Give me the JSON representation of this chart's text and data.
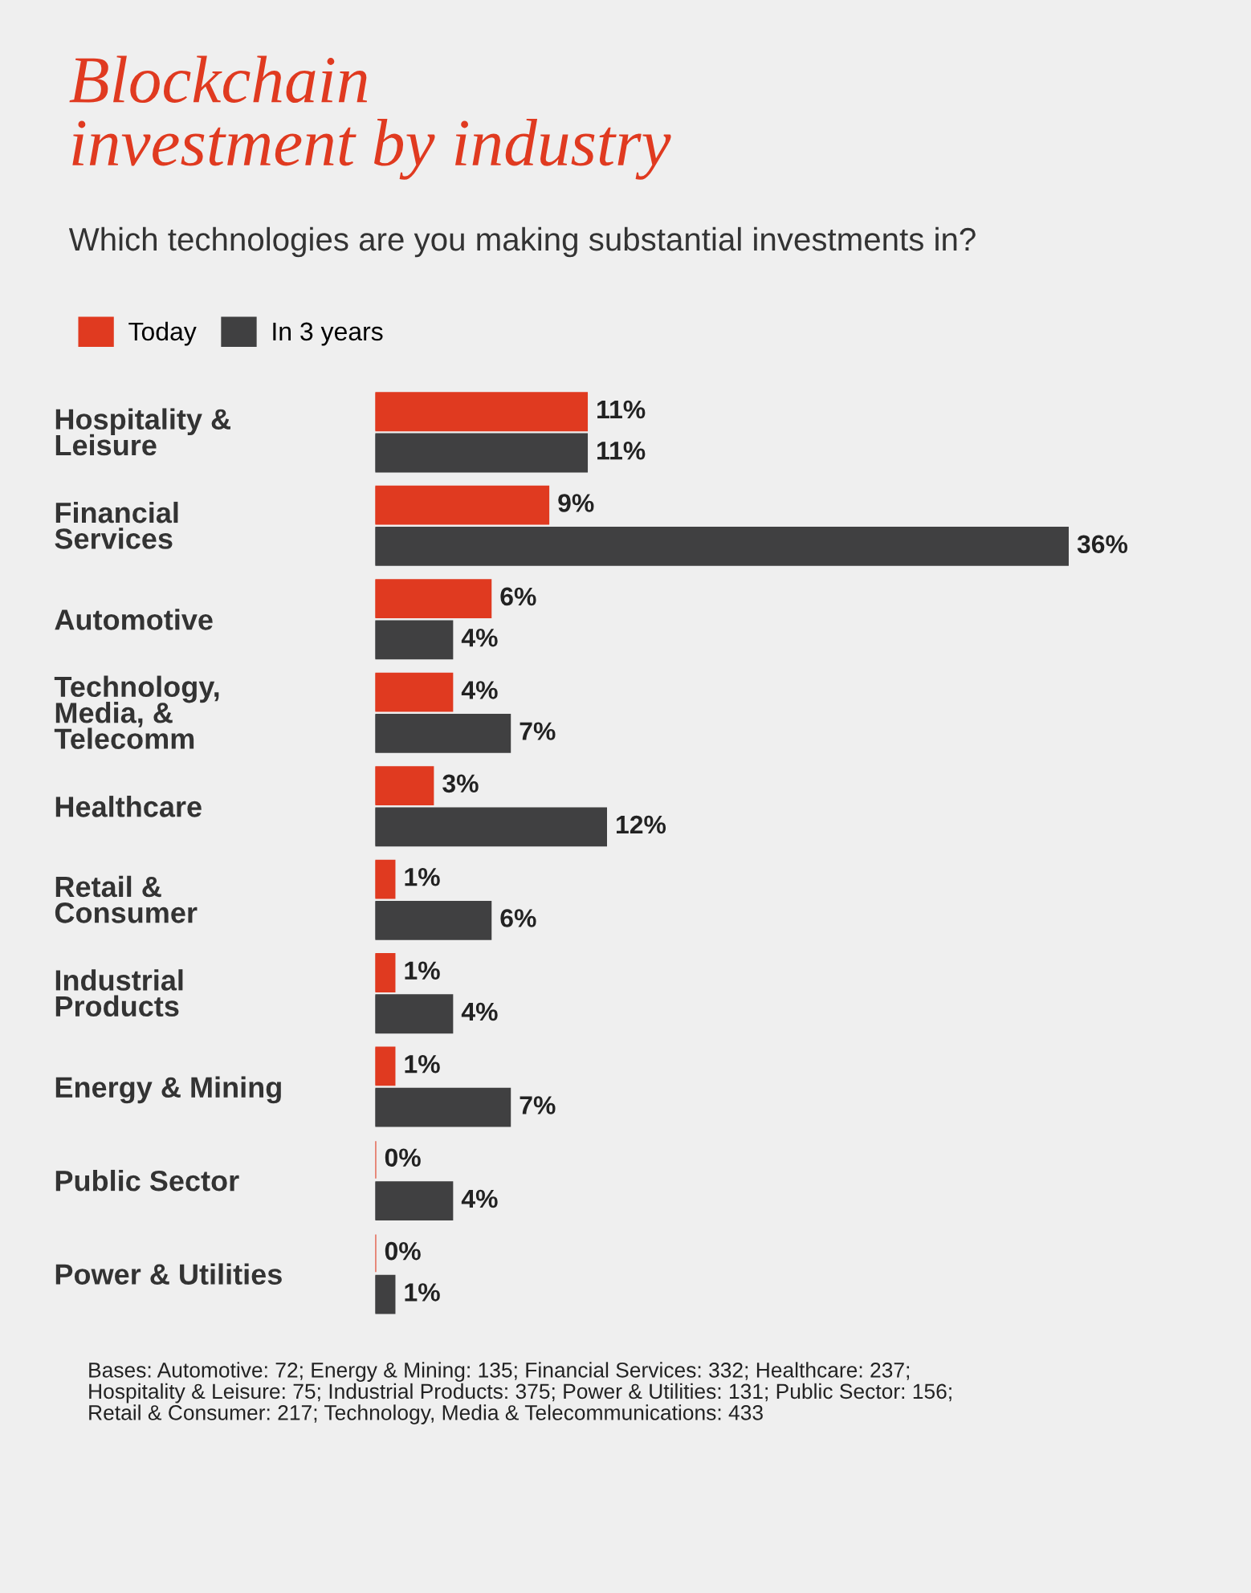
{
  "chart_data": {
    "type": "bar",
    "orientation": "horizontal",
    "title": "Blockchain\ninvestment by industry",
    "subtitle": "Which technologies are you making substantial investments in?",
    "categories": [
      "Hospitality &\nLeisure",
      "Financial\nServices",
      "Automotive",
      "Technology,\nMedia, &\nTelecomm",
      "Healthcare",
      "Retail &\nConsumer",
      "Industrial\nProducts",
      "Energy & Mining",
      "Public Sector",
      "Power & Utilities"
    ],
    "series": [
      {
        "name": "Today",
        "color": "#e03a20",
        "values": [
          11,
          9,
          6,
          4,
          3,
          1,
          1,
          1,
          0,
          0
        ],
        "value_labels": [
          "11%",
          "9%",
          "6%",
          "4%",
          "3%",
          "1%",
          "1%",
          "1%",
          "0%",
          "0%"
        ]
      },
      {
        "name": "In 3 years",
        "color": "#404041",
        "values": [
          11,
          36,
          4,
          7,
          12,
          6,
          4,
          7,
          4,
          1
        ],
        "value_labels": [
          "11%",
          "36%",
          "4%",
          "7%",
          "12%",
          "6%",
          "4%",
          "7%",
          "4%",
          "1%"
        ]
      }
    ],
    "legend": "top left",
    "tick_labels": "y",
    "grid": false,
    "annotations": [
      "Bases: Automotive: 72; Energy & Mining: 135; Financial Services: 332; Healthcare: 237;\nHospitality & Leisure: 75; Industrial Products: 375; Power & Utilities: 131; Public Sector: 156;\nRetail & Consumer: 217; Technology, Media & Telecommunications: 433"
    ]
  }
}
